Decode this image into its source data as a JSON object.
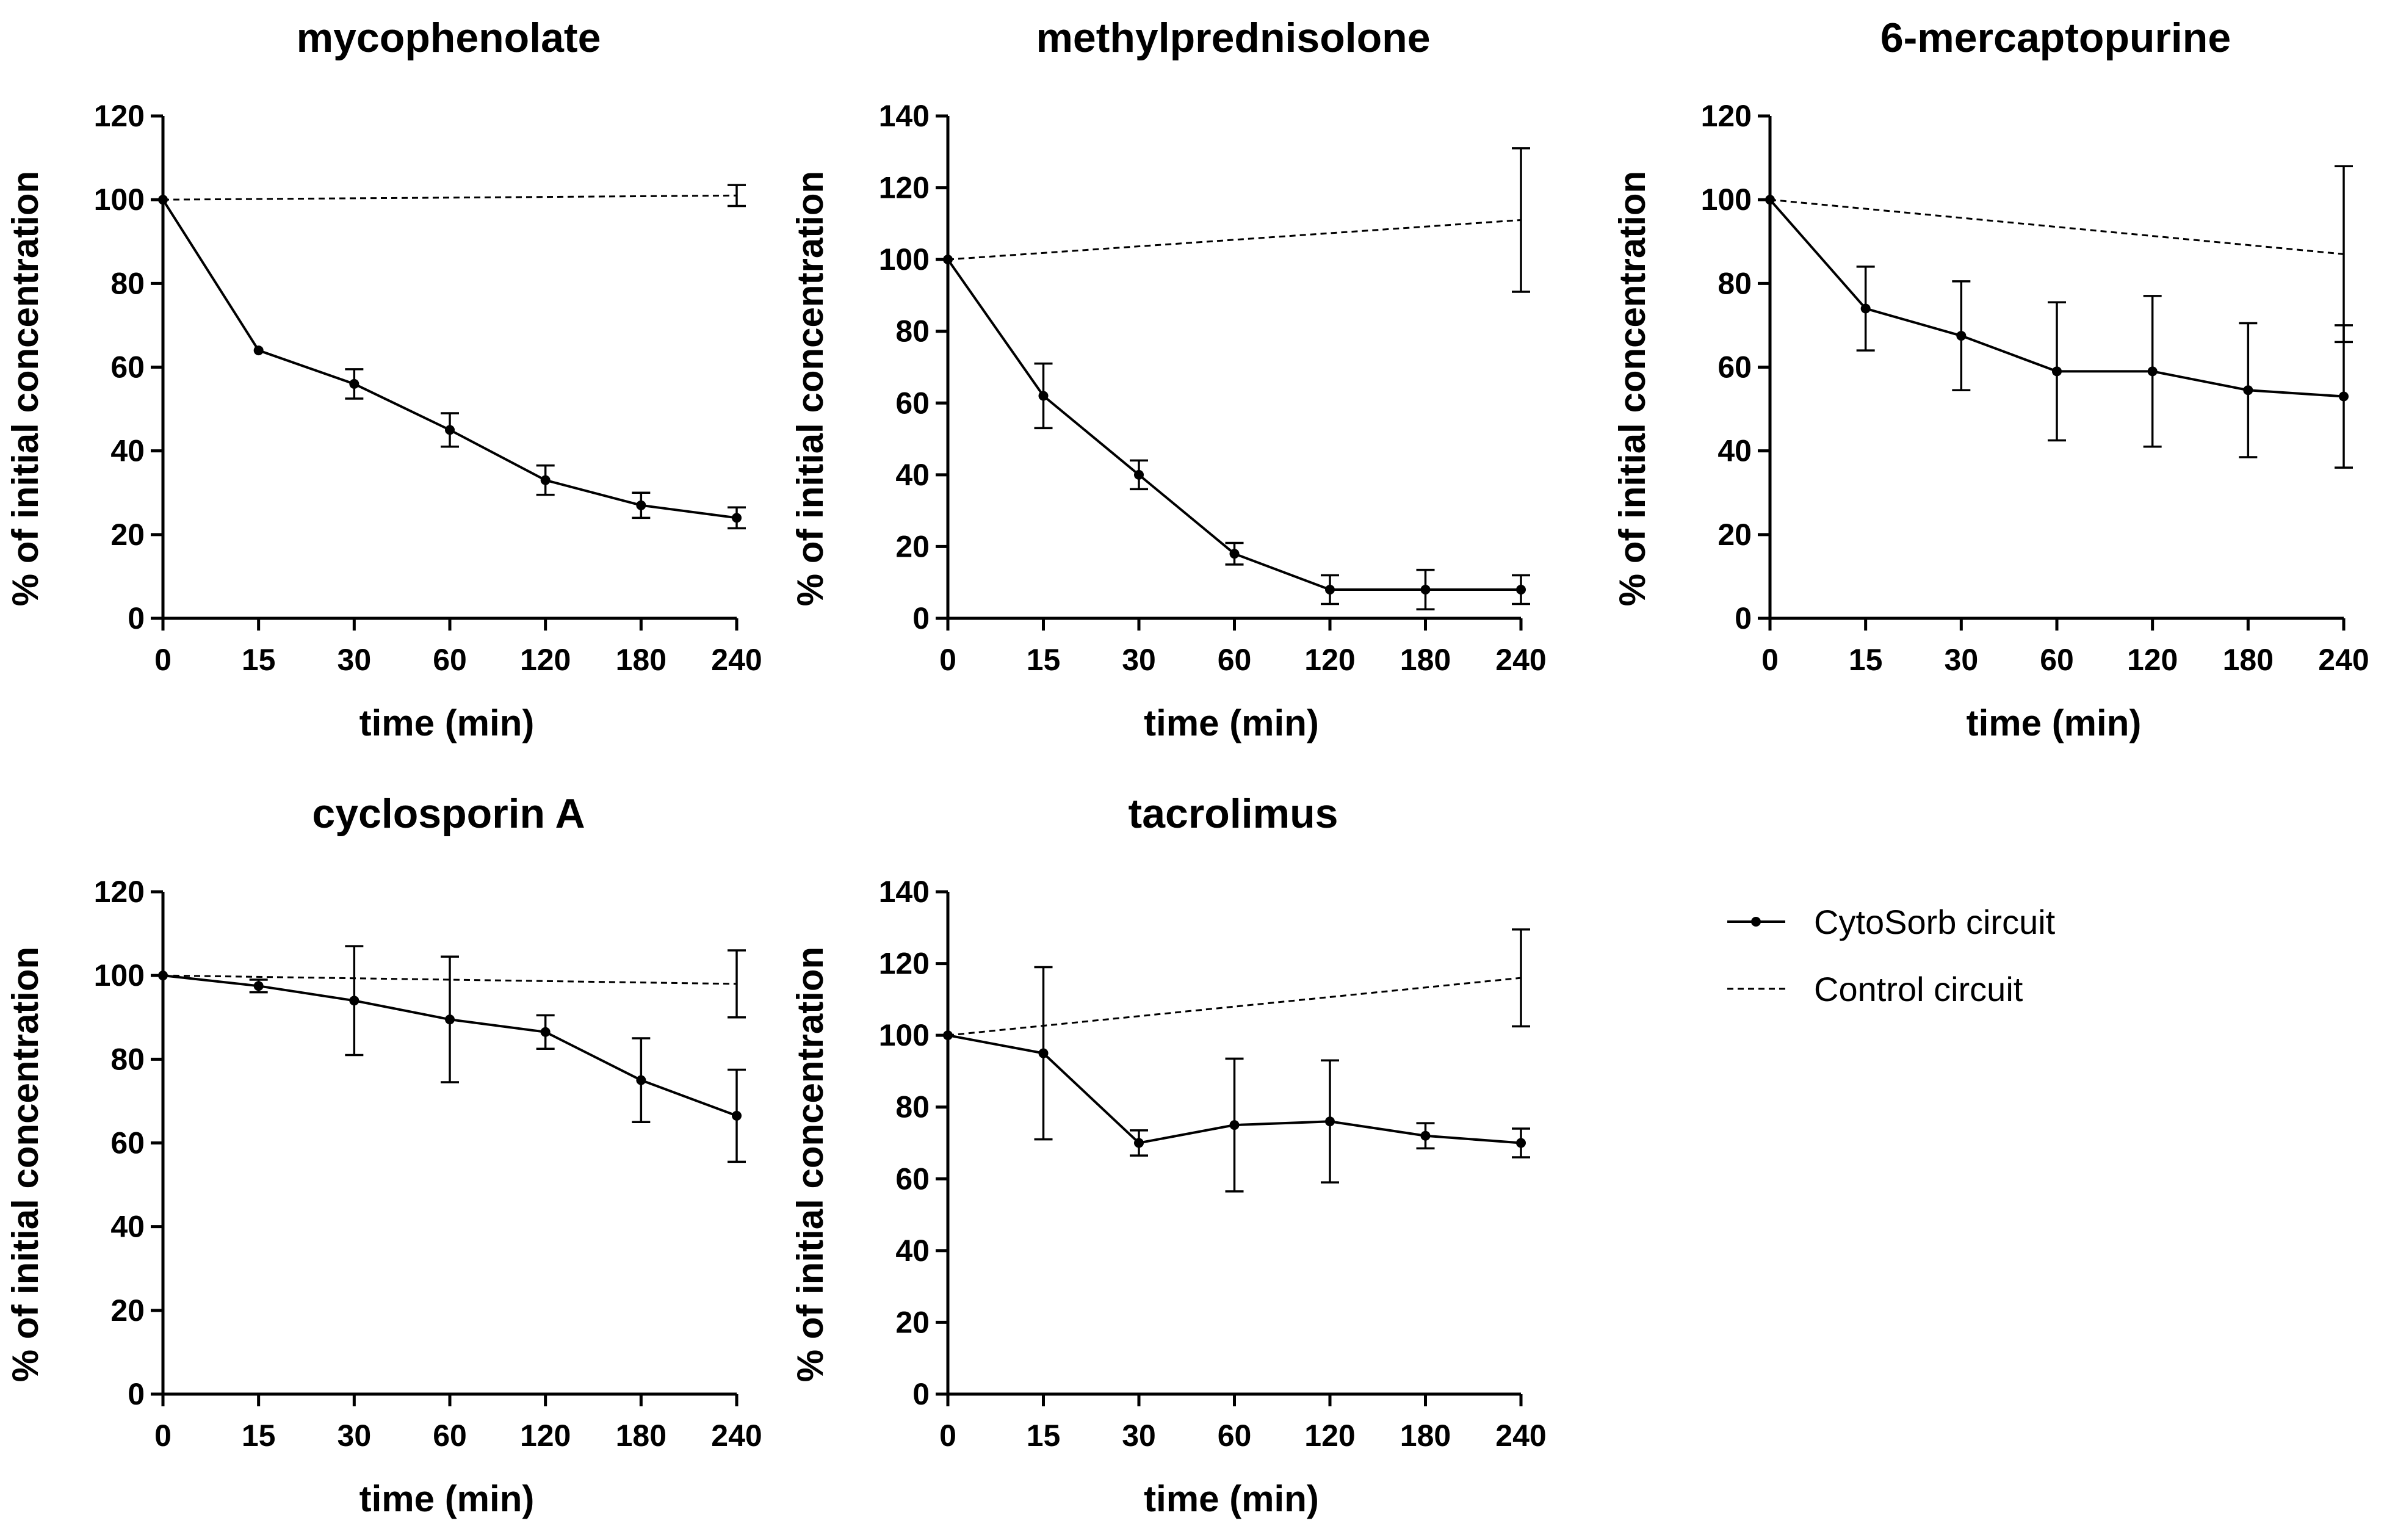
{
  "figure": {
    "legend": {
      "placement": "right",
      "entries": [
        "CytoSorb circuit",
        "Control circuit"
      ]
    }
  },
  "chart_data": [
    {
      "type": "line",
      "title": "mycophenolate",
      "xlabel": "time (min)",
      "ylabel": "% of initial concentration",
      "categories": [
        "0",
        "15",
        "30",
        "60",
        "120",
        "180",
        "240"
      ],
      "yticks": [
        0,
        20,
        40,
        60,
        80,
        100,
        120
      ],
      "ylim": [
        0,
        120
      ],
      "series": [
        {
          "name": "CytoSorb circuit",
          "style": "solid",
          "values": [
            100,
            64,
            56,
            45,
            33,
            27,
            24
          ],
          "errors": [
            0,
            0,
            3.5,
            4,
            3.5,
            3,
            2.5
          ]
        },
        {
          "name": "Control circuit",
          "style": "dashed",
          "values": [
            100,
            null,
            null,
            null,
            null,
            null,
            101
          ],
          "errors": [
            0,
            null,
            null,
            null,
            null,
            null,
            2.5
          ]
        }
      ]
    },
    {
      "type": "line",
      "title": "methylprednisolone",
      "xlabel": "time (min)",
      "ylabel": "% of initial concentration",
      "categories": [
        "0",
        "15",
        "30",
        "60",
        "120",
        "180",
        "240"
      ],
      "yticks": [
        0,
        20,
        40,
        60,
        80,
        100,
        120,
        140
      ],
      "ylim": [
        0,
        140
      ],
      "series": [
        {
          "name": "CytoSorb circuit",
          "style": "solid",
          "values": [
            100,
            62,
            40,
            18,
            8,
            8,
            8
          ],
          "errors": [
            0,
            9,
            4,
            3,
            4,
            5.5,
            4
          ]
        },
        {
          "name": "Control circuit",
          "style": "dashed",
          "values": [
            100,
            null,
            null,
            null,
            null,
            null,
            111
          ],
          "errors": [
            0,
            null,
            null,
            null,
            null,
            null,
            20
          ]
        }
      ]
    },
    {
      "type": "line",
      "title": "6-mercaptopurine",
      "xlabel": "time (min)",
      "ylabel": "% of initial concentration",
      "categories": [
        "0",
        "15",
        "30",
        "60",
        "120",
        "180",
        "240"
      ],
      "yticks": [
        0,
        20,
        40,
        60,
        80,
        100,
        120
      ],
      "ylim": [
        0,
        120
      ],
      "series": [
        {
          "name": "CytoSorb circuit",
          "style": "solid",
          "values": [
            100,
            74,
            67.5,
            59,
            59,
            54.5,
            53
          ],
          "errors": [
            0,
            10,
            13,
            16.5,
            18,
            16,
            17
          ]
        },
        {
          "name": "Control circuit",
          "style": "dashed",
          "values": [
            100,
            null,
            null,
            null,
            null,
            null,
            87
          ],
          "errors": [
            0,
            null,
            null,
            null,
            null,
            null,
            21
          ]
        }
      ]
    },
    {
      "type": "line",
      "title": "cyclosporin  A",
      "xlabel": "time (min)",
      "ylabel": "% of initial concentration",
      "categories": [
        "0",
        "15",
        "30",
        "60",
        "120",
        "180",
        "240"
      ],
      "yticks": [
        0,
        20,
        40,
        60,
        80,
        100,
        120
      ],
      "ylim": [
        0,
        120
      ],
      "series": [
        {
          "name": "CytoSorb circuit",
          "style": "solid",
          "values": [
            100,
            97.5,
            94,
            89.5,
            86.5,
            75,
            66.5
          ],
          "errors": [
            0,
            1.5,
            13,
            15,
            4,
            10,
            11
          ]
        },
        {
          "name": "Control circuit",
          "style": "dashed",
          "values": [
            100,
            null,
            null,
            null,
            null,
            null,
            98
          ],
          "errors": [
            0,
            null,
            null,
            null,
            null,
            null,
            8
          ]
        }
      ]
    },
    {
      "type": "line",
      "title": "tacrolimus",
      "xlabel": "time (min)",
      "ylabel": "% of initial concentration",
      "categories": [
        "0",
        "15",
        "30",
        "60",
        "120",
        "180",
        "240"
      ],
      "yticks": [
        0,
        20,
        40,
        60,
        80,
        100,
        120,
        140
      ],
      "ylim": [
        0,
        140
      ],
      "series": [
        {
          "name": "CytoSorb circuit",
          "style": "solid",
          "values": [
            100,
            95,
            70,
            75,
            76,
            72,
            70
          ],
          "errors": [
            0,
            24,
            3.5,
            18.5,
            17,
            3.5,
            4
          ]
        },
        {
          "name": "Control circuit",
          "style": "dashed",
          "values": [
            100,
            null,
            null,
            null,
            null,
            null,
            116
          ],
          "errors": [
            0,
            null,
            null,
            null,
            null,
            null,
            13.5
          ]
        }
      ]
    }
  ]
}
